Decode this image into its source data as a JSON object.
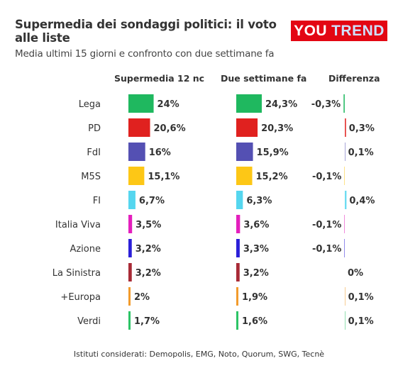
{
  "title": "Supermedia dei sondaggi politici: il voto alle liste",
  "subtitle": "Media ultimi 15 giorni e confronto con due settimane fa",
  "logo": {
    "part1": "YOU",
    "part2": "TREND"
  },
  "footer": "Istituti considerati: Demopolis, EMG, Noto, Quorum, SWG, Tecnè",
  "chart_data": {
    "type": "table",
    "columns": [
      "Supermedia 12 nc",
      "Due settimane fa",
      "Differenza"
    ],
    "rows": [
      {
        "party": "Lega",
        "current": 24.0,
        "current_label": "24%",
        "previous": 24.3,
        "previous_label": "24,3%",
        "diff": -0.3,
        "diff_label": "-0,3%",
        "color": "#1fb85f"
      },
      {
        "party": "PD",
        "current": 20.6,
        "current_label": "20,6%",
        "previous": 20.3,
        "previous_label": "20,3%",
        "diff": 0.3,
        "diff_label": "0,3%",
        "color": "#e0211f"
      },
      {
        "party": "FdI",
        "current": 16.0,
        "current_label": "16%",
        "previous": 15.9,
        "previous_label": "15,9%",
        "diff": 0.1,
        "diff_label": "0,1%",
        "color": "#5450b3"
      },
      {
        "party": "M5S",
        "current": 15.1,
        "current_label": "15,1%",
        "previous": 15.2,
        "previous_label": "15,2%",
        "diff": -0.1,
        "diff_label": "-0,1%",
        "color": "#fdc716"
      },
      {
        "party": "FI",
        "current": 6.7,
        "current_label": "6,7%",
        "previous": 6.3,
        "previous_label": "6,3%",
        "diff": 0.4,
        "diff_label": "0,4%",
        "color": "#55d6ef"
      },
      {
        "party": "Italia Viva",
        "current": 3.5,
        "current_label": "3,5%",
        "previous": 3.6,
        "previous_label": "3,6%",
        "diff": -0.1,
        "diff_label": "-0,1%",
        "color": "#e41fbd"
      },
      {
        "party": "Azione",
        "current": 3.2,
        "current_label": "3,2%",
        "previous": 3.3,
        "previous_label": "3,3%",
        "diff": -0.1,
        "diff_label": "-0,1%",
        "color": "#2b1fd8"
      },
      {
        "party": "La Sinistra",
        "current": 3.2,
        "current_label": "3,2%",
        "previous": 3.2,
        "previous_label": "3,2%",
        "diff": 0.0,
        "diff_label": "0%",
        "color": "#a82a36"
      },
      {
        "party": "+Europa",
        "current": 2.0,
        "current_label": "2%",
        "previous": 1.9,
        "previous_label": "1,9%",
        "diff": 0.1,
        "diff_label": "0,1%",
        "color": "#f29b2c"
      },
      {
        "party": "Verdi",
        "current": 1.7,
        "current_label": "1,7%",
        "previous": 1.6,
        "previous_label": "1,6%",
        "diff": 0.1,
        "diff_label": "0,1%",
        "color": "#2cc466"
      }
    ],
    "bar_scale_max": 24.3
  }
}
